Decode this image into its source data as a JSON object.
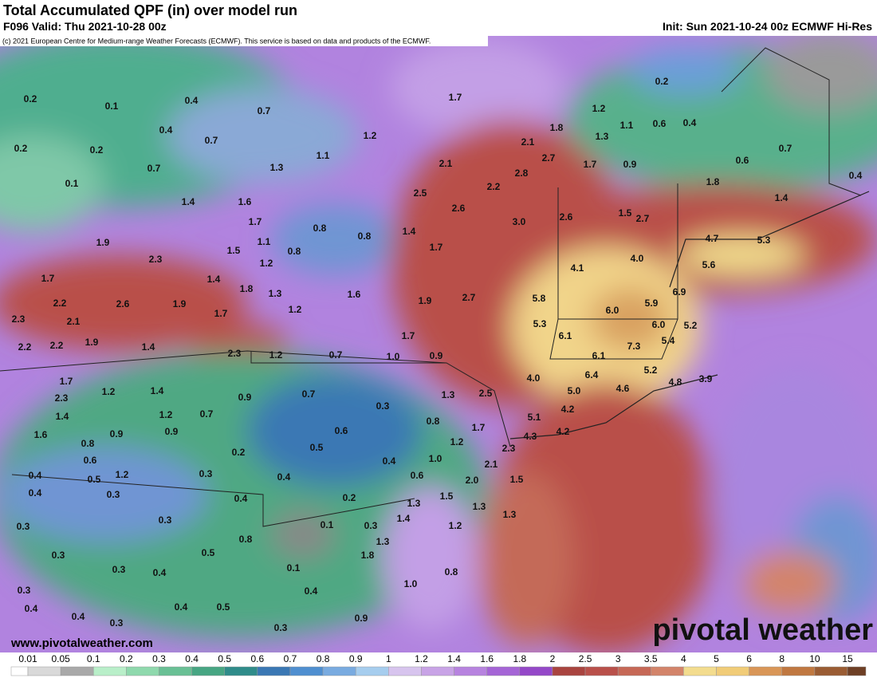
{
  "header": {
    "title": "Total Accumulated QPF (in) over model run",
    "valid": "F096 Valid: Thu 2021-10-28 00z",
    "init": "Init: Sun 2021-10-24 00z ECMWF Hi-Res",
    "copyright": "(c) 2021 European Centre for Medium-range Weather Forecasts (ECMWF). This service is based on data and products of the ECMWF."
  },
  "map": {
    "labels": [
      "0.2",
      "0.1",
      "0.4",
      "0.7",
      "0.4",
      "0.7",
      "1.2",
      "0.2",
      "0.2",
      "1.1",
      "1.3",
      "0.7",
      "0.1",
      "1.6",
      "1.4",
      "1.7",
      "0.8",
      "0.8",
      "1.4",
      "1.1",
      "1.5",
      "0.8",
      "1.7",
      "1.9",
      "2.3",
      "1.2",
      "1.7",
      "1.4",
      "1.8",
      "1.3",
      "1.6",
      "2.2",
      "2.6",
      "1.9",
      "1.2",
      "1.9",
      "2.7",
      "2.3",
      "2.1",
      "1.7",
      "2.2",
      "2.2",
      "1.9",
      "1.4",
      "2.3",
      "1.2",
      "0.7",
      "1.0",
      "0.9",
      "1.7",
      "1.7",
      "2.3",
      "1.2",
      "1.4",
      "0.9",
      "0.7",
      "1.3",
      "2.5",
      "4.0",
      "1.4",
      "1.2",
      "0.7",
      "0.3",
      "0.8",
      "1.6",
      "0.9",
      "0.9",
      "0.8",
      "0.6",
      "1.7",
      "1.2",
      "0.6",
      "0.2",
      "0.5",
      "0.4",
      "1.0",
      "2.1",
      "2.3",
      "0.4",
      "0.5",
      "1.2",
      "0.3",
      "0.4",
      "0.6",
      "2.0",
      "1.5",
      "0.4",
      "0.3",
      "0.4",
      "0.2",
      "1.3",
      "1.5",
      "1.3",
      "1.4",
      "0.3",
      "0.1",
      "0.3",
      "1.3",
      "0.3",
      "1.2",
      "0.8",
      "0.5",
      "1.3",
      "1.8",
      "0.3",
      "0.3",
      "0.4",
      "0.1",
      "0.8",
      "1.0",
      "0.3",
      "0.4",
      "0.4",
      "0.4",
      "0.5",
      "0.4",
      "0.3",
      "0.9",
      "0.3",
      "1.7",
      "1.2",
      "0.2",
      "1.8",
      "1.1",
      "0.6",
      "0.4",
      "1.3",
      "2.1",
      "2.7",
      "0.7",
      "2.1",
      "1.7",
      "0.9",
      "0.6",
      "2.8",
      "0.4",
      "2.2",
      "1.8",
      "2.5",
      "1.4",
      "2.6",
      "2.6",
      "1.5",
      "2.7",
      "3.0",
      "4.7",
      "5.3",
      "4.0",
      "5.6",
      "4.1",
      "5.8",
      "6.0",
      "5.9",
      "6.9",
      "5.3",
      "6.0",
      "5.2",
      "6.1",
      "5.4",
      "7.3",
      "6.1",
      "6.4",
      "5.2",
      "5.0",
      "4.6",
      "4.2",
      "5.1",
      "4.8",
      "3.9",
      "4.2",
      "4.3"
    ],
    "watermark": "www.pivotalweather.com",
    "logo": "pivotal weather"
  },
  "colorbar": {
    "labels": [
      "0.01",
      "0.05",
      "0.1",
      "0.2",
      "0.3",
      "0.4",
      "0.5",
      "0.6",
      "0.7",
      "0.8",
      "0.9",
      "1",
      "1.2",
      "1.4",
      "1.6",
      "1.8",
      "2",
      "2.5",
      "3",
      "3.5",
      "4",
      "5",
      "6",
      "8",
      "10",
      "15"
    ],
    "colors": [
      "#ffffff",
      "#d9d9d9",
      "#a9a9a9",
      "#b9efc9",
      "#8fd9ad",
      "#69c095",
      "#47a683",
      "#2f8c8a",
      "#3a78b4",
      "#4f8fd0",
      "#79abe0",
      "#a6cdee",
      "#d7c4ee",
      "#c8a3e6",
      "#b783df",
      "#a565d6",
      "#9448c8",
      "#a9443f",
      "#b9504a",
      "#c66856",
      "#d3846a",
      "#f3dc8e",
      "#f1cc78",
      "#d99657",
      "#c07840",
      "#9a5c33",
      "#6e3f25"
    ]
  }
}
